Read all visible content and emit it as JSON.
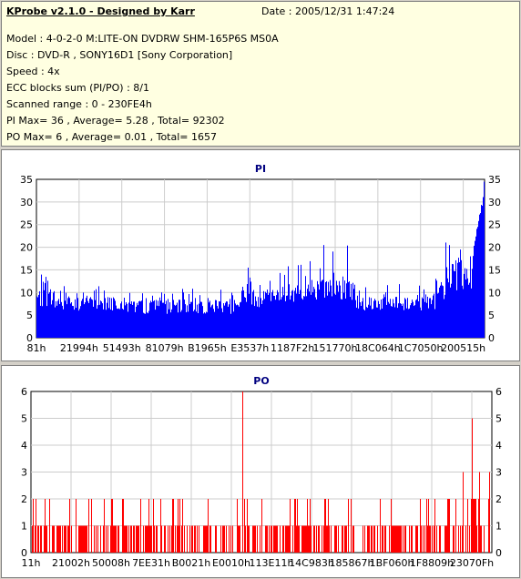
{
  "header": {
    "title": "KProbe v2.1.0 - Designed by Karr",
    "date": "Date : 2005/12/31 1:47:24",
    "model": "Model : 4-0-2-0 M:LITE-ON DVDRW SHM-165P6S MS0A",
    "disc": "Disc : DVD-R , SONY16D1 [Sony Corporation]",
    "speed": "Speed : 4x",
    "ecc": "ECC blocks sum (PI/PO) : 8/1",
    "range": "Scanned range : 0 - 230FE4h",
    "pi_stats": "PI Max= 36 , Average= 5.28 , Total= 92302",
    "po_stats": "PO Max= 6 , Average= 0.01 , Total= 1657"
  },
  "chart_data": [
    {
      "type": "bar",
      "title": "PI",
      "color": "#0000ff",
      "ylim": [
        0,
        35
      ],
      "yticks": [
        0,
        5,
        10,
        15,
        20,
        25,
        30,
        35
      ],
      "xticks": [
        "81h",
        "21994h",
        "51493h",
        "81079h",
        "B1965h",
        "E3537h",
        "1187F2h",
        "151770h",
        "18C064h",
        "1C7050h",
        "200515h"
      ],
      "x_range_hex": [
        "0",
        "230FE4h"
      ],
      "profile": [
        {
          "from": 0.0,
          "to": 0.04,
          "base": 9,
          "max": 14
        },
        {
          "from": 0.04,
          "to": 0.2,
          "base": 8,
          "max": 12
        },
        {
          "from": 0.2,
          "to": 0.45,
          "base": 7,
          "max": 11
        },
        {
          "from": 0.45,
          "to": 0.55,
          "base": 9,
          "max": 16
        },
        {
          "from": 0.55,
          "to": 0.6,
          "base": 10,
          "max": 18
        },
        {
          "from": 0.6,
          "to": 0.71,
          "base": 11,
          "max": 21
        },
        {
          "from": 0.71,
          "to": 0.89,
          "base": 8,
          "max": 12
        },
        {
          "from": 0.89,
          "to": 0.93,
          "base": 11,
          "max": 22
        },
        {
          "from": 0.93,
          "to": 0.975,
          "base": 14,
          "max": 23
        },
        {
          "from": 0.975,
          "to": 1.0,
          "base": 20,
          "max": 36
        }
      ]
    },
    {
      "type": "bar",
      "title": "PO",
      "color": "#ff0000",
      "ylim": [
        0,
        6
      ],
      "yticks": [
        0,
        1,
        2,
        3,
        4,
        5,
        6
      ],
      "xticks": [
        "11h",
        "21002h",
        "50008h",
        "7EE31h",
        "B0021h",
        "E0010h",
        "113E11h",
        "14C983h",
        "185867h",
        "1BF060h",
        "1F8809h",
        "23070Fh"
      ],
      "x_range_hex": [
        "0",
        "230FE4h"
      ],
      "spikes": [
        {
          "x": 0.459,
          "value": 6
        },
        {
          "x": 0.957,
          "value": 5
        },
        {
          "x": 0.937,
          "value": 3
        },
        {
          "x": 0.972,
          "value": 3
        },
        {
          "x": 0.995,
          "value": 3
        }
      ]
    }
  ]
}
